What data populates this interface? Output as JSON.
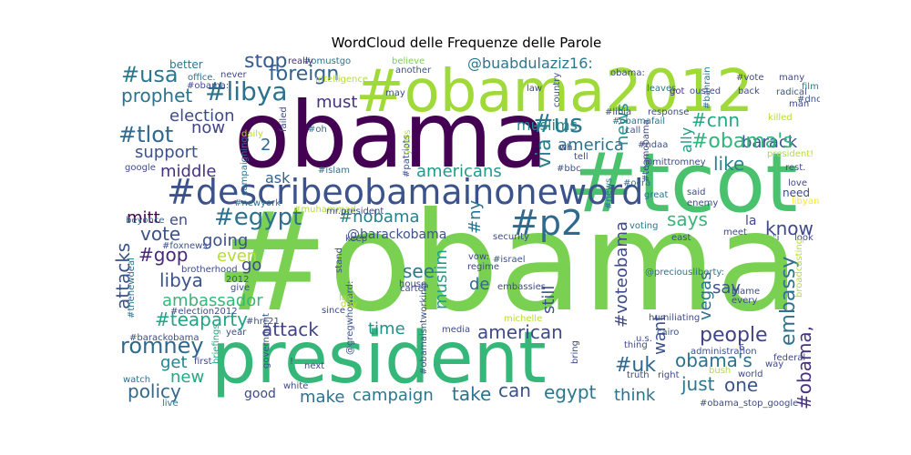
{
  "chart_data": {
    "type": "wordcloud",
    "title": "WordCloud delle Frequenze delle Parole",
    "background": "#ffffff",
    "colormap": "viridis",
    "words": [
      {
        "text": "#obama",
        "color": "#7ad151"
      },
      {
        "text": "obama",
        "color": "#440154"
      },
      {
        "text": "president",
        "color": "#35b779"
      },
      {
        "text": "#tcot",
        "color": "#4ac16d"
      },
      {
        "text": "#obama2012",
        "color": "#a0da39"
      },
      {
        "text": "#describeobamainoneword",
        "color": "#3b528b"
      },
      {
        "text": "#p2",
        "color": "#31688e"
      },
      {
        "text": "romney",
        "color": "#30698e"
      },
      {
        "text": "#libya",
        "color": "#2c728e"
      },
      {
        "text": "#usa",
        "color": "#2a788e"
      },
      {
        "text": "foreign",
        "color": "#33638d"
      },
      {
        "text": "stop",
        "color": "#365c8d"
      },
      {
        "text": "prophet",
        "color": "#2c728e"
      },
      {
        "text": "election",
        "color": "#3e4a89"
      },
      {
        "text": "#tlot",
        "color": "#31688e"
      },
      {
        "text": "now",
        "color": "#414487"
      },
      {
        "text": "support",
        "color": "#3b528b"
      },
      {
        "text": "middle",
        "color": "#46337e"
      },
      {
        "text": "must",
        "color": "#46327e"
      },
      {
        "text": "#us",
        "color": "#2a788e"
      },
      {
        "text": "muslims",
        "color": "#24868e"
      },
      {
        "text": "#cnn",
        "color": "#22a884"
      },
      {
        "text": "barack",
        "color": "#3b528b"
      },
      {
        "text": "#obama's",
        "color": "#2fb47c"
      },
      {
        "text": "america",
        "color": "#2d708e"
      },
      {
        "text": "like",
        "color": "#26828e"
      },
      {
        "text": "ally",
        "color": "#1f9e89"
      },
      {
        "text": "via",
        "color": "#277f8e"
      },
      {
        "text": "news",
        "color": "#21918c"
      },
      {
        "text": "@buabdulaziz16:",
        "color": "#2a788e"
      },
      {
        "text": "americans",
        "color": "#1f9a8a"
      },
      {
        "text": "#egypt",
        "color": "#2c728e"
      },
      {
        "text": "#nobama",
        "color": "#26828e"
      },
      {
        "text": "mitt",
        "color": "#440154"
      },
      {
        "text": "en",
        "color": "#3e4a89"
      },
      {
        "text": "vote",
        "color": "#3b528b"
      },
      {
        "text": "going",
        "color": "#3b528b"
      },
      {
        "text": "#gop",
        "color": "#482878"
      },
      {
        "text": "even",
        "color": "#b5de2b"
      },
      {
        "text": "libya",
        "color": "#3b528b"
      },
      {
        "text": "go",
        "color": "#3e4a89"
      },
      {
        "text": "attacks",
        "color": "#3b528b"
      },
      {
        "text": "ambassador",
        "color": "#35b779"
      },
      {
        "text": "#teaparty",
        "color": "#20a486"
      },
      {
        "text": "attack",
        "color": "#414487"
      },
      {
        "text": "time",
        "color": "#21918c"
      },
      {
        "text": "muslim",
        "color": "#1f9e89"
      },
      {
        "text": "see",
        "color": "#2a788e"
      },
      {
        "text": "de",
        "color": "#31688e"
      },
      {
        "text": "still",
        "color": "#3b528b"
      },
      {
        "text": "american",
        "color": "#3e4a89"
      },
      {
        "text": "#ny",
        "color": "#2c728e"
      },
      {
        "text": "says",
        "color": "#35b779"
      },
      {
        "text": "know",
        "color": "#3e4a89"
      },
      {
        "text": "la",
        "color": "#3e4a89"
      },
      {
        "text": "embassy",
        "color": "#2c728e"
      },
      {
        "text": "say",
        "color": "#3b528b"
      },
      {
        "text": "#voteobama",
        "color": "#3e4a89"
      },
      {
        "text": "vegas",
        "color": "#2c728e"
      },
      {
        "text": "want",
        "color": "#3b528b"
      },
      {
        "text": "people",
        "color": "#414487"
      },
      {
        "text": "obama's",
        "color": "#2c728e"
      },
      {
        "text": "#uk",
        "color": "#31688e"
      },
      {
        "text": "just",
        "color": "#2a788e"
      },
      {
        "text": "one",
        "color": "#3b528b"
      },
      {
        "text": "#obama,",
        "color": "#46327e"
      },
      {
        "text": "get",
        "color": "#26828e"
      },
      {
        "text": "new",
        "color": "#22a884"
      },
      {
        "text": "policy",
        "color": "#31688e"
      },
      {
        "text": "good",
        "color": "#3e4a89"
      },
      {
        "text": "make",
        "color": "#2c728e"
      },
      {
        "text": "campaign",
        "color": "#2a788e"
      },
      {
        "text": "take",
        "color": "#2c728e"
      },
      {
        "text": "can",
        "color": "#3b528b"
      },
      {
        "text": "egypt",
        "color": "#2a788e"
      },
      {
        "text": "think",
        "color": "#2c728e"
      },
      {
        "text": "@barackobama",
        "color": "#3b528b"
      },
      {
        "text": "ask",
        "color": "#33638d"
      },
      {
        "text": "2",
        "color": "#31688e"
      },
      {
        "text": "better",
        "color": "#2a788e"
      },
      {
        "text": "office.",
        "color": "#2c728e"
      },
      {
        "text": "#omustgo",
        "color": "#2c728e"
      },
      {
        "text": "really",
        "color": "#46327e"
      },
      {
        "text": "believe",
        "color": "#7ad151"
      },
      {
        "text": "another",
        "color": "#3b528b"
      },
      {
        "text": "obama:",
        "color": "#3e4a89"
      },
      {
        "text": "leaves",
        "color": "#2a788e"
      },
      {
        "text": "many",
        "color": "#3e4a89"
      },
      {
        "text": "#vote",
        "color": "#3e4a89"
      },
      {
        "text": "#bahrain",
        "color": "#2c728e"
      },
      {
        "text": "film",
        "color": "#26828e"
      },
      {
        "text": "back",
        "color": "#3e4a89"
      },
      {
        "text": "radical",
        "color": "#3b528b"
      },
      {
        "text": "#dnc",
        "color": "#3b528b"
      },
      {
        "text": "man",
        "color": "#3e4a89"
      },
      {
        "text": "killed",
        "color": "#b5de2b"
      },
      {
        "text": "#obamafail",
        "color": "#2c728e"
      },
      {
        "text": "#libia",
        "color": "#3e4a89"
      },
      {
        "text": "response",
        "color": "#3e4a89"
      },
      {
        "text": "call",
        "color": "#3b528b"
      },
      {
        "text": "#ndaa",
        "color": "#3b528b"
      },
      {
        "text": "country",
        "color": "#3b528b"
      },
      {
        "text": "got",
        "color": "#46327e"
      },
      {
        "text": "ousted",
        "color": "#3e4a89"
      },
      {
        "text": "#oh",
        "color": "#2c728e"
      },
      {
        "text": "#islam",
        "color": "#2c728e"
      },
      {
        "text": "#patriots",
        "color": "#3b528b"
      },
      {
        "text": "#bbc",
        "color": "#3b528b"
      },
      {
        "text": "@mittromney",
        "color": "#3e4a89"
      },
      {
        "text": "#newyork",
        "color": "#2c728e"
      },
      {
        "text": "#muhammad",
        "color": "#b5de2b"
      },
      {
        "text": "#ocra",
        "color": "#2c728e"
      },
      {
        "text": "#news",
        "color": "#2c728e"
      },
      {
        "text": "#israel",
        "color": "#3b528b"
      },
      {
        "text": "security",
        "color": "#3e4a89"
      },
      {
        "text": "voting",
        "color": "#2c728e"
      },
      {
        "text": "great",
        "color": "#2c728e"
      },
      {
        "text": "said",
        "color": "#3e4a89"
      },
      {
        "text": "enemy",
        "color": "#3e4a89"
      },
      {
        "text": "need",
        "color": "#3e4a89"
      },
      {
        "text": "love",
        "color": "#3e4a89"
      },
      {
        "text": "libyan",
        "color": "#fde725"
      },
      {
        "text": "rest.",
        "color": "#3e4a89"
      },
      {
        "text": "president!",
        "color": "#b5de2b"
      },
      {
        "text": "meet",
        "color": "#3e4a89"
      },
      {
        "text": "east",
        "color": "#3e4a89"
      },
      {
        "text": "\"i",
        "color": "#3e4a89"
      },
      {
        "text": "look",
        "color": "#3e4a89"
      },
      {
        "text": "#foxnews",
        "color": "#3b528b"
      },
      {
        "text": "beyonce",
        "color": "#2c728e"
      },
      {
        "text": "brotherhood",
        "color": "#3e4a89"
      },
      {
        "text": "give",
        "color": "#3e4a89"
      },
      {
        "text": "2012",
        "color": "#3b528b"
      },
      {
        "text": "#thenewdeal",
        "color": "#2c728e"
      },
      {
        "text": "#election2012",
        "color": "#3e4a89"
      },
      {
        "text": "#barackobama",
        "color": "#3e4a89"
      },
      {
        "text": "year",
        "color": "#3e4a89"
      },
      {
        "text": "first",
        "color": "#3e4a89"
      },
      {
        "text": "watch",
        "color": "#2c728e"
      },
      {
        "text": "briefings",
        "color": "#22a884"
      },
      {
        "text": "live",
        "color": "#2c728e"
      },
      {
        "text": "government",
        "color": "#3b528b"
      },
      {
        "text": "white",
        "color": "#3e4a89"
      },
      {
        "text": "next",
        "color": "#3e4a89"
      },
      {
        "text": "since",
        "color": "#3e4a89"
      },
      {
        "text": "@gregwhoward:",
        "color": "#3b528b"
      },
      {
        "text": "mr.president",
        "color": "#3e4a89"
      },
      {
        "text": "carter",
        "color": "#3e4a89"
      },
      {
        "text": "house",
        "color": "#3e4a89"
      },
      {
        "text": "regime",
        "color": "#3e4a89"
      },
      {
        "text": "vow:",
        "color": "#3e4a89"
      },
      {
        "text": "embassies",
        "color": "#3e4a89"
      },
      {
        "text": "michelle",
        "color": "#b5de2b"
      },
      {
        "text": "#obamaisntworking",
        "color": "#3b528b"
      },
      {
        "text": "media",
        "color": "#3e4a89"
      },
      {
        "text": "@preciousliberty:",
        "color": "#2c728e"
      },
      {
        "text": "humiliating",
        "color": "#3e4a89"
      },
      {
        "text": "cairo",
        "color": "#3b528b"
      },
      {
        "text": "u.s.",
        "color": "#3e4a89"
      },
      {
        "text": "administration",
        "color": "#3b528b"
      },
      {
        "text": "thing",
        "color": "#3e4a89"
      },
      {
        "text": "truth",
        "color": "#3e4a89"
      },
      {
        "text": "right",
        "color": "#3e4a89"
      },
      {
        "text": "bush",
        "color": "#b5de2b"
      },
      {
        "text": "world",
        "color": "#3e4a89"
      },
      {
        "text": "#obama_stop_google",
        "color": "#3e4a89"
      },
      {
        "text": "federal",
        "color": "#3e4a89"
      },
      {
        "text": "way",
        "color": "#3e4a89"
      },
      {
        "text": "blame",
        "color": "#3e4a89"
      },
      {
        "text": "every",
        "color": "#3e4a89"
      },
      {
        "text": "broadcasting",
        "color": "#b5de2b"
      },
      {
        "text": "bring",
        "color": "#3e4a89"
      },
      {
        "text": "#teamobama",
        "color": "#3e4a89"
      },
      {
        "text": "#hrc21",
        "color": "#3e4a89"
      },
      {
        "text": "failed",
        "color": "#3e4a89"
      },
      {
        "text": "campaigning",
        "color": "#2c728e"
      },
      {
        "text": "daily",
        "color": "#b5de2b"
      },
      {
        "text": "google",
        "color": "#3e4a89"
      },
      {
        "text": "never",
        "color": "#3e4a89"
      },
      {
        "text": "#obama:",
        "color": "#3e4a89"
      },
      {
        "text": "intelligence",
        "color": "#b5de2b"
      },
      {
        "text": "may",
        "color": "#3e4a89"
      },
      {
        "text": "law",
        "color": "#3e4a89"
      },
      {
        "text": "keep",
        "color": "#3e4a89"
      },
      {
        "text": "stand",
        "color": "#3e4a89"
      },
      {
        "text": "last",
        "color": "#b5de2b"
      },
      {
        "text": "day",
        "color": "#b5de2b"
      },
      {
        "text": "!",
        "color": "#3e4a89"
      },
      {
        "text": "years",
        "color": "#b5de2b"
      },
      {
        "text": "wh.",
        "color": "#3e4a89"
      },
      {
        "text": "tell",
        "color": "#3e4a89"
      },
      {
        "text": "6",
        "color": "#3e4a89"
      }
    ]
  }
}
